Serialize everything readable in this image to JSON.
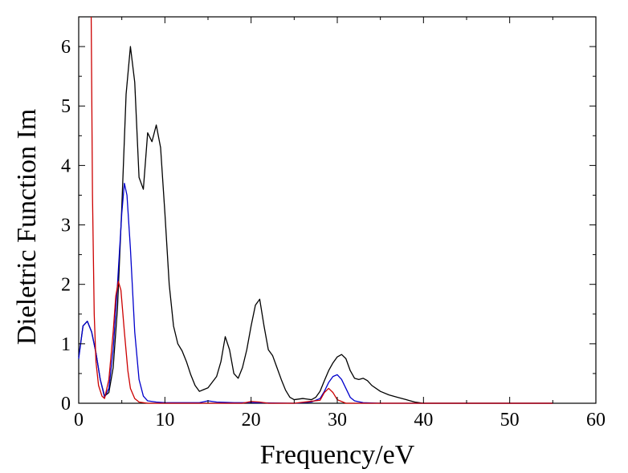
{
  "chart_data": {
    "type": "line",
    "title": "",
    "xlabel": "Frequency/eV",
    "ylabel": "Dieletric Function Im",
    "xlim": [
      0,
      60
    ],
    "ylim": [
      0,
      6.5
    ],
    "xticks": [
      0,
      10,
      20,
      30,
      40,
      50,
      60
    ],
    "yticks": [
      0,
      1,
      2,
      3,
      4,
      5,
      6
    ],
    "grid": false,
    "legend": "none",
    "series": [
      {
        "color": "#000000",
        "x": [
          0,
          0.5,
          1,
          1.5,
          2,
          2.5,
          3,
          3.5,
          4,
          4.5,
          5,
          5.5,
          6,
          6.5,
          7,
          7.5,
          8,
          8.5,
          9,
          9.5,
          10,
          10.5,
          11,
          11.5,
          12,
          12.5,
          13,
          13.5,
          14,
          15,
          16,
          16.5,
          17,
          17.5,
          18,
          18.5,
          19,
          19.5,
          20,
          20.5,
          21,
          21.5,
          22,
          22.5,
          23,
          23.5,
          24,
          24.5,
          25,
          26,
          27,
          27.5,
          28,
          28.5,
          29,
          29.5,
          30,
          30.5,
          31,
          31.5,
          32,
          32.5,
          33,
          33.5,
          34,
          35,
          36,
          37,
          38,
          39,
          40,
          45,
          50,
          55
        ],
        "y": [
          0.78,
          1.3,
          1.38,
          1.2,
          0.85,
          0.4,
          0.12,
          0.18,
          0.6,
          1.6,
          3.3,
          5.2,
          6.0,
          5.4,
          3.8,
          3.6,
          4.55,
          4.4,
          4.68,
          4.3,
          3.2,
          2.0,
          1.3,
          1.0,
          0.88,
          0.7,
          0.48,
          0.3,
          0.2,
          0.26,
          0.45,
          0.7,
          1.12,
          0.9,
          0.5,
          0.42,
          0.6,
          0.9,
          1.3,
          1.65,
          1.75,
          1.3,
          0.9,
          0.8,
          0.6,
          0.4,
          0.22,
          0.1,
          0.06,
          0.08,
          0.06,
          0.1,
          0.2,
          0.38,
          0.55,
          0.68,
          0.78,
          0.82,
          0.75,
          0.55,
          0.42,
          0.4,
          0.42,
          0.38,
          0.3,
          0.2,
          0.14,
          0.1,
          0.06,
          0.02,
          0.0,
          0.0,
          0.0,
          0.0
        ]
      },
      {
        "color": "#0000cc",
        "x": [
          0,
          0.5,
          1,
          1.5,
          2,
          2.5,
          3,
          3.5,
          4,
          4.5,
          5,
          5.3,
          5.6,
          6,
          6.5,
          7,
          7.5,
          8,
          9,
          10,
          14,
          15,
          16,
          18,
          20,
          25,
          27,
          28,
          28.5,
          29,
          29.5,
          30,
          30.5,
          31,
          31.5,
          32,
          33,
          35,
          40,
          50,
          55
        ],
        "y": [
          0.75,
          1.3,
          1.38,
          1.2,
          0.85,
          0.4,
          0.1,
          0.25,
          0.9,
          2.0,
          3.2,
          3.7,
          3.5,
          2.6,
          1.2,
          0.4,
          0.12,
          0.04,
          0.02,
          0.01,
          0.01,
          0.04,
          0.02,
          0.01,
          0.01,
          0.0,
          0.02,
          0.08,
          0.2,
          0.35,
          0.45,
          0.48,
          0.4,
          0.25,
          0.1,
          0.04,
          0.01,
          0.0,
          0.0,
          0.0,
          0.0
        ]
      },
      {
        "color": "#cc0000",
        "x": [
          1.45,
          1.6,
          1.8,
          2.0,
          2.3,
          2.7,
          3.0,
          3.5,
          4,
          4.3,
          4.6,
          4.9,
          5.3,
          5.7,
          6,
          6.5,
          7,
          8,
          10,
          15,
          19,
          20,
          21,
          22,
          25,
          28,
          28.5,
          29,
          29.5,
          30,
          31,
          35,
          40,
          50,
          55
        ],
        "y": [
          6.5,
          3.5,
          1.5,
          0.7,
          0.3,
          0.12,
          0.08,
          0.4,
          1.2,
          1.8,
          2.05,
          1.9,
          1.2,
          0.55,
          0.25,
          0.08,
          0.02,
          0.0,
          0.0,
          0.0,
          0.0,
          0.03,
          0.02,
          0.0,
          0.0,
          0.05,
          0.18,
          0.25,
          0.18,
          0.06,
          0.0,
          0.0,
          0.0,
          0.0,
          0.0
        ]
      }
    ]
  }
}
